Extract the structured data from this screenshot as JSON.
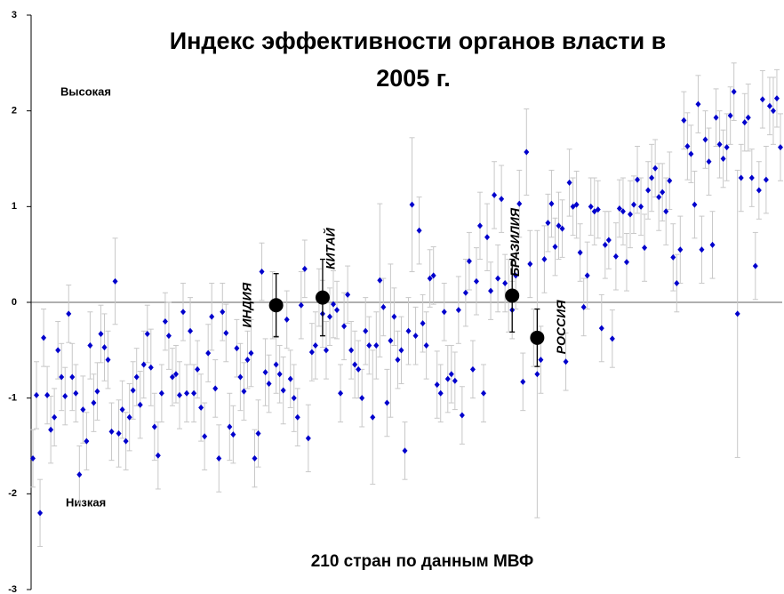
{
  "chart_data": {
    "type": "scatter",
    "title": "Индекс эффективности органов власти в",
    "subtitle": "2005 г.",
    "annotations": {
      "high": "Высокая",
      "low": "Низкая",
      "footer": "210 стран по данным МВФ"
    },
    "ylim": [
      -3,
      3
    ],
    "yticks": [
      -3,
      -2,
      -1,
      0,
      1,
      2,
      3
    ],
    "point_color": "#0000cc",
    "error_color": "#c8c8c8",
    "highlight_color": "#000000",
    "values": [
      -1.63,
      -0.97,
      -2.2,
      -0.37,
      -0.97,
      -1.33,
      -1.2,
      -0.5,
      -0.78,
      -0.98,
      -0.12,
      -0.78,
      -0.95,
      -1.8,
      -1.12,
      -1.45,
      -0.45,
      -1.05,
      -0.93,
      -0.33,
      -0.47,
      -0.6,
      -1.35,
      0.22,
      -1.37,
      -1.12,
      -1.45,
      -1.2,
      -0.92,
      -0.78,
      -1.07,
      -0.65,
      -0.33,
      -0.68,
      -1.3,
      -1.6,
      -0.95,
      -0.2,
      -0.35,
      -0.78,
      -0.75,
      -0.97,
      -0.1,
      -0.95,
      -0.3,
      -0.95,
      -0.7,
      -1.1,
      -1.4,
      -0.53,
      -0.15,
      -0.9,
      -1.63,
      -0.1,
      -0.32,
      -1.3,
      -1.38,
      -0.48,
      -0.78,
      -0.93,
      -0.6,
      -0.53,
      -1.63,
      -1.37,
      0.32,
      -0.73,
      -0.85,
      -0.03,
      -0.65,
      -0.75,
      -0.92,
      -0.18,
      -0.8,
      -1.0,
      -1.2,
      -0.03,
      0.35,
      -1.42,
      -0.52,
      -0.45,
      0.05,
      -0.12,
      -0.5,
      -0.15,
      -0.02,
      -0.08,
      -0.95,
      -0.25,
      0.08,
      -0.5,
      -0.65,
      -0.7,
      -1.0,
      -0.3,
      -0.45,
      -1.2,
      -0.45,
      0.23,
      -0.05,
      -1.05,
      -0.4,
      -0.15,
      -0.6,
      -0.5,
      -1.55,
      -0.3,
      1.02,
      -0.35,
      0.75,
      -0.22,
      -0.45,
      0.25,
      0.28,
      -0.86,
      -0.95,
      -0.1,
      -0.8,
      -0.75,
      -0.82,
      -0.08,
      -1.18,
      0.1,
      0.43,
      -0.7,
      0.22,
      0.8,
      -0.95,
      0.68,
      0.12,
      1.12,
      0.25,
      1.08,
      0.2,
      0.07,
      -0.08,
      0.28,
      1.03,
      -0.83,
      1.57,
      0.4,
      -0.37,
      -0.75,
      -0.6,
      0.45,
      0.83,
      1.03,
      0.58,
      0.8,
      0.77,
      -0.62,
      1.25,
      1.0,
      1.02,
      0.52,
      -0.05,
      0.28,
      1.0,
      0.95,
      0.97,
      -0.27,
      0.6,
      0.65,
      -0.38,
      0.48,
      0.98,
      0.95,
      0.42,
      0.92,
      1.02,
      1.28,
      1.0,
      0.57,
      1.17,
      1.3,
      1.4,
      1.1,
      1.15,
      0.95,
      1.27,
      0.47,
      0.2,
      0.55,
      1.9,
      1.63,
      1.55,
      1.02,
      2.07,
      0.55,
      1.7,
      1.47,
      0.6,
      1.93,
      1.65,
      1.5,
      1.62,
      1.95,
      2.2,
      -0.12,
      1.3,
      1.88,
      1.93,
      1.3,
      0.38,
      1.17,
      2.12,
      1.28,
      2.05,
      2.0,
      2.13,
      1.62
    ],
    "errors": [
      0.3,
      0.35,
      0.35,
      0.3,
      0.3,
      0.35,
      0.3,
      0.3,
      0.35,
      0.3,
      0.3,
      0.35,
      0.3,
      0.3,
      0.35,
      0.3,
      0.35,
      0.3,
      0.3,
      0.3,
      0.35,
      0.3,
      0.3,
      0.45,
      0.35,
      0.3,
      0.3,
      0.35,
      0.3,
      0.3,
      0.35,
      0.35,
      0.3,
      0.4,
      0.35,
      0.35,
      0.3,
      0.3,
      0.35,
      0.3,
      0.3,
      0.35,
      0.3,
      0.3,
      0.35,
      0.3,
      0.3,
      0.35,
      0.35,
      0.3,
      0.35,
      0.3,
      0.35,
      0.3,
      0.3,
      0.35,
      0.3,
      0.3,
      0.35,
      0.3,
      0.3,
      0.35,
      0.3,
      0.35,
      0.3,
      0.35,
      0.3,
      0.35,
      0.3,
      0.3,
      0.35,
      0.3,
      0.3,
      0.35,
      0.3,
      0.35,
      0.3,
      0.35,
      0.3,
      0.35,
      0.3,
      0.35,
      0.3,
      0.3,
      0.35,
      0.3,
      0.3,
      0.35,
      0.3,
      0.3,
      0.35,
      0.3,
      0.3,
      0.35,
      0.3,
      0.7,
      0.35,
      0.8,
      0.3,
      0.35,
      0.8,
      0.3,
      0.3,
      0.35,
      0.3,
      0.35,
      0.7,
      0.3,
      0.35,
      0.3,
      0.35,
      0.3,
      0.3,
      0.35,
      0.3,
      0.3,
      0.35,
      0.3,
      0.3,
      0.35,
      0.3,
      0.35,
      0.3,
      0.3,
      0.35,
      0.35,
      0.3,
      0.35,
      0.3,
      0.35,
      0.35,
      0.35,
      0.3,
      0.38,
      0.3,
      0.35,
      0.35,
      0.3,
      0.45,
      0.35,
      0.3,
      1.5,
      0.35,
      0.35,
      0.3,
      0.35,
      0.3,
      0.35,
      0.3,
      0.3,
      0.35,
      0.3,
      0.35,
      0.3,
      0.3,
      0.35,
      0.3,
      0.35,
      0.3,
      0.35,
      0.35,
      0.3,
      0.3,
      0.35,
      0.3,
      0.35,
      0.3,
      0.35,
      0.3,
      0.35,
      0.3,
      0.35,
      0.3,
      0.35,
      0.3,
      0.35,
      0.3,
      0.35,
      0.3,
      0.35,
      0.3,
      0.35,
      0.3,
      0.35,
      0.3,
      0.35,
      0.3,
      0.35,
      0.3,
      0.35,
      0.35,
      0.3,
      0.35,
      0.3,
      0.35,
      0.3,
      0.3,
      1.5,
      0.35,
      0.3,
      0.35,
      0.3,
      0.35,
      0.3,
      0.3,
      0.35,
      0.3,
      0.35,
      0.3,
      0.35
    ],
    "highlights": [
      {
        "name": "ИНДИЯ",
        "x": 68,
        "value": -0.03,
        "error": 0.33
      },
      {
        "name": "КИТАЙ",
        "x": 81,
        "value": 0.05,
        "error": 0.4
      },
      {
        "name": "БРАЗИЛИЯ",
        "x": 134,
        "value": 0.07,
        "error": 0.38
      },
      {
        "name": "РОССИЯ",
        "x": 141,
        "value": -0.37,
        "error": 0.3
      }
    ]
  }
}
